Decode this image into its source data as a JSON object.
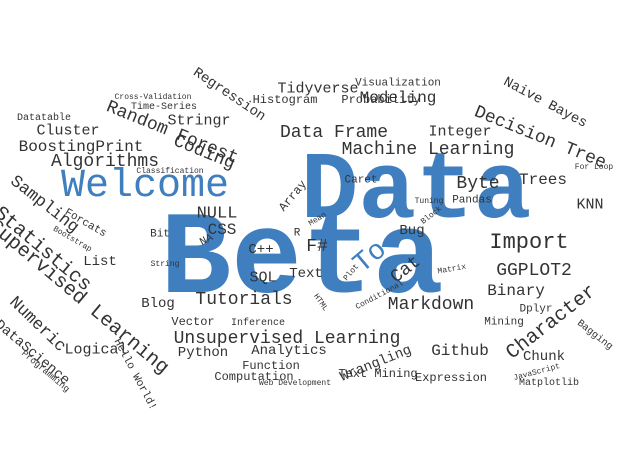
{
  "colors": {
    "accent": "#3f7fbf",
    "text": "#333333"
  },
  "words": [
    {
      "text": "Data",
      "color": "#3f7fbf",
      "bold": true
    },
    {
      "text": "Beta",
      "color": "#3f7fbf",
      "bold": true
    },
    {
      "text": "Welcome",
      "color": "#3f7fbf"
    },
    {
      "text": "To",
      "color": "#3f7fbf"
    },
    {
      "text": "Cross-Validation"
    },
    {
      "text": "Time-Series"
    },
    {
      "text": "Datatable"
    },
    {
      "text": "Cluster"
    },
    {
      "text": "Random Forest"
    },
    {
      "text": "Regression"
    },
    {
      "text": "Visualization"
    },
    {
      "text": "Tidyverse"
    },
    {
      "text": "Modeling"
    },
    {
      "text": "Histogram"
    },
    {
      "text": "Probability"
    },
    {
      "text": "Naive Bayes"
    },
    {
      "text": "Decision Tree"
    },
    {
      "text": "Stringr"
    },
    {
      "text": "Data Frame"
    },
    {
      "text": "Integer"
    },
    {
      "text": "BoostingPrint"
    },
    {
      "text": "Coding"
    },
    {
      "text": "Machine Learning"
    },
    {
      "text": "Algorithms"
    },
    {
      "text": "Classification"
    },
    {
      "text": "For Loop"
    },
    {
      "text": "Sampling"
    },
    {
      "text": "Caret"
    },
    {
      "text": "Byte"
    },
    {
      "text": "Trees"
    },
    {
      "text": "KNN"
    },
    {
      "text": "Array"
    },
    {
      "text": "Tuning"
    },
    {
      "text": "Block"
    },
    {
      "text": "Pandas"
    },
    {
      "text": "Statistics"
    },
    {
      "text": "Forcats"
    },
    {
      "text": "Bootstrap"
    },
    {
      "text": "NULL"
    },
    {
      "text": "Bit"
    },
    {
      "text": "NA"
    },
    {
      "text": "CSS"
    },
    {
      "text": "C++"
    },
    {
      "text": "R"
    },
    {
      "text": "F#"
    },
    {
      "text": "Bug"
    },
    {
      "text": "Cat"
    },
    {
      "text": "Import"
    },
    {
      "text": "Mean"
    },
    {
      "text": "List"
    },
    {
      "text": "Supervised Learning"
    },
    {
      "text": "String"
    },
    {
      "text": "SQL"
    },
    {
      "text": "Text"
    },
    {
      "text": "GGPLOT2"
    },
    {
      "text": "Binary"
    },
    {
      "text": "Numeric"
    },
    {
      "text": "Blog"
    },
    {
      "text": "Tutorials"
    },
    {
      "text": "Markdown"
    },
    {
      "text": "Dplyr"
    },
    {
      "text": "HTML"
    },
    {
      "text": "Plot"
    },
    {
      "text": "Matrix"
    },
    {
      "text": "Conditional"
    },
    {
      "text": "Vector"
    },
    {
      "text": "Inference"
    },
    {
      "text": "Unsupervised Learning"
    },
    {
      "text": "Mining"
    },
    {
      "text": "Bagging"
    },
    {
      "text": "DataScience"
    },
    {
      "text": "Logical"
    },
    {
      "text": "Python"
    },
    {
      "text": "Analytics"
    },
    {
      "text": "Github"
    },
    {
      "text": "Character"
    },
    {
      "text": "Chunk"
    },
    {
      "text": "Hello World!"
    },
    {
      "text": "Function"
    },
    {
      "text": "Wrangling"
    },
    {
      "text": "Matplotlib"
    },
    {
      "text": "Programming"
    },
    {
      "text": "Computation"
    },
    {
      "text": "Text Mining"
    },
    {
      "text": "JavaScript"
    },
    {
      "text": "Web Development"
    },
    {
      "text": "Expression"
    }
  ]
}
